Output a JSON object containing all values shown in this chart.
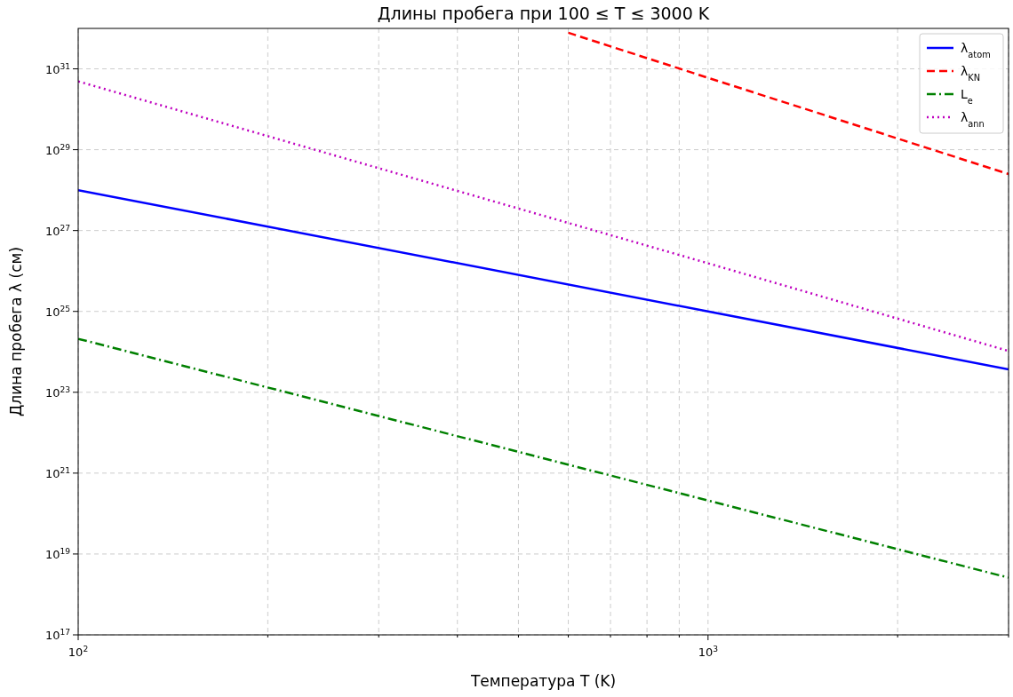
{
  "chart_data": {
    "type": "line",
    "title": "Длины пробега при 100 ≤ T ≤ 3000 K",
    "xlabel": "Температура T (K)",
    "ylabel": "Длина пробега λ (см)",
    "log": "xy",
    "grid": true,
    "legend": "top right",
    "xlim": [
      100,
      3000
    ],
    "ylim": [
      1e+17,
      1e+32
    ],
    "xticks": [
      {
        "value": 100,
        "label": "10$^{2}$"
      },
      {
        "value": 200,
        "label": null
      },
      {
        "value": 300,
        "label": null
      },
      {
        "value": 400,
        "label": null
      },
      {
        "value": 500,
        "label": null
      },
      {
        "value": 600,
        "label": null
      },
      {
        "value": 700,
        "label": null
      },
      {
        "value": 800,
        "label": null
      },
      {
        "value": 900,
        "label": null
      },
      {
        "value": 1000,
        "label": "10$^{3}$"
      },
      {
        "value": 2000,
        "label": null
      },
      {
        "value": 3000,
        "label": null
      }
    ],
    "yticks": [
      {
        "value": 1e+17,
        "label": "10$^{17}$"
      },
      {
        "value": 1e+19,
        "label": "10$^{19}$"
      },
      {
        "value": 1e+21,
        "label": "10$^{21}$"
      },
      {
        "value": 1e+23,
        "label": "10$^{23}$"
      },
      {
        "value": 1e+25,
        "label": "10$^{25}$"
      },
      {
        "value": 1e+27,
        "label": "10$^{27}$"
      },
      {
        "value": 1e+29,
        "label": "10$^{29}$"
      },
      {
        "value": 1e+31,
        "label": "10$^{31}$"
      }
    ],
    "series": [
      {
        "name": "λ$_{atom}$",
        "color": "#0000ff",
        "line_style": "solid",
        "x": [
          100,
          1000,
          3000
        ],
        "values": [
          1e+28,
          1e+25,
          3.7e+23
        ]
      },
      {
        "name": "λ$_{KN}$",
        "color": "#ff0000",
        "line_style": "dashed",
        "x": [
          600,
          1000,
          3000
        ],
        "values": [
          7.8e+31,
          6e+30,
          2.5e+28
        ]
      },
      {
        "name": "L$_{e}$",
        "color": "#008000",
        "line_style": "dashdot",
        "x": [
          100,
          1000,
          3000
        ],
        "values": [
          2.1e+24,
          2.1e+20,
          2.6e+18
        ]
      },
      {
        "name": "λ$_{ann}$",
        "color": "#bf00bf",
        "line_style": "dotted",
        "x": [
          100,
          1000,
          3000
        ],
        "values": [
          4.9e+30,
          1.55e+26,
          1.05e+24
        ]
      }
    ]
  }
}
